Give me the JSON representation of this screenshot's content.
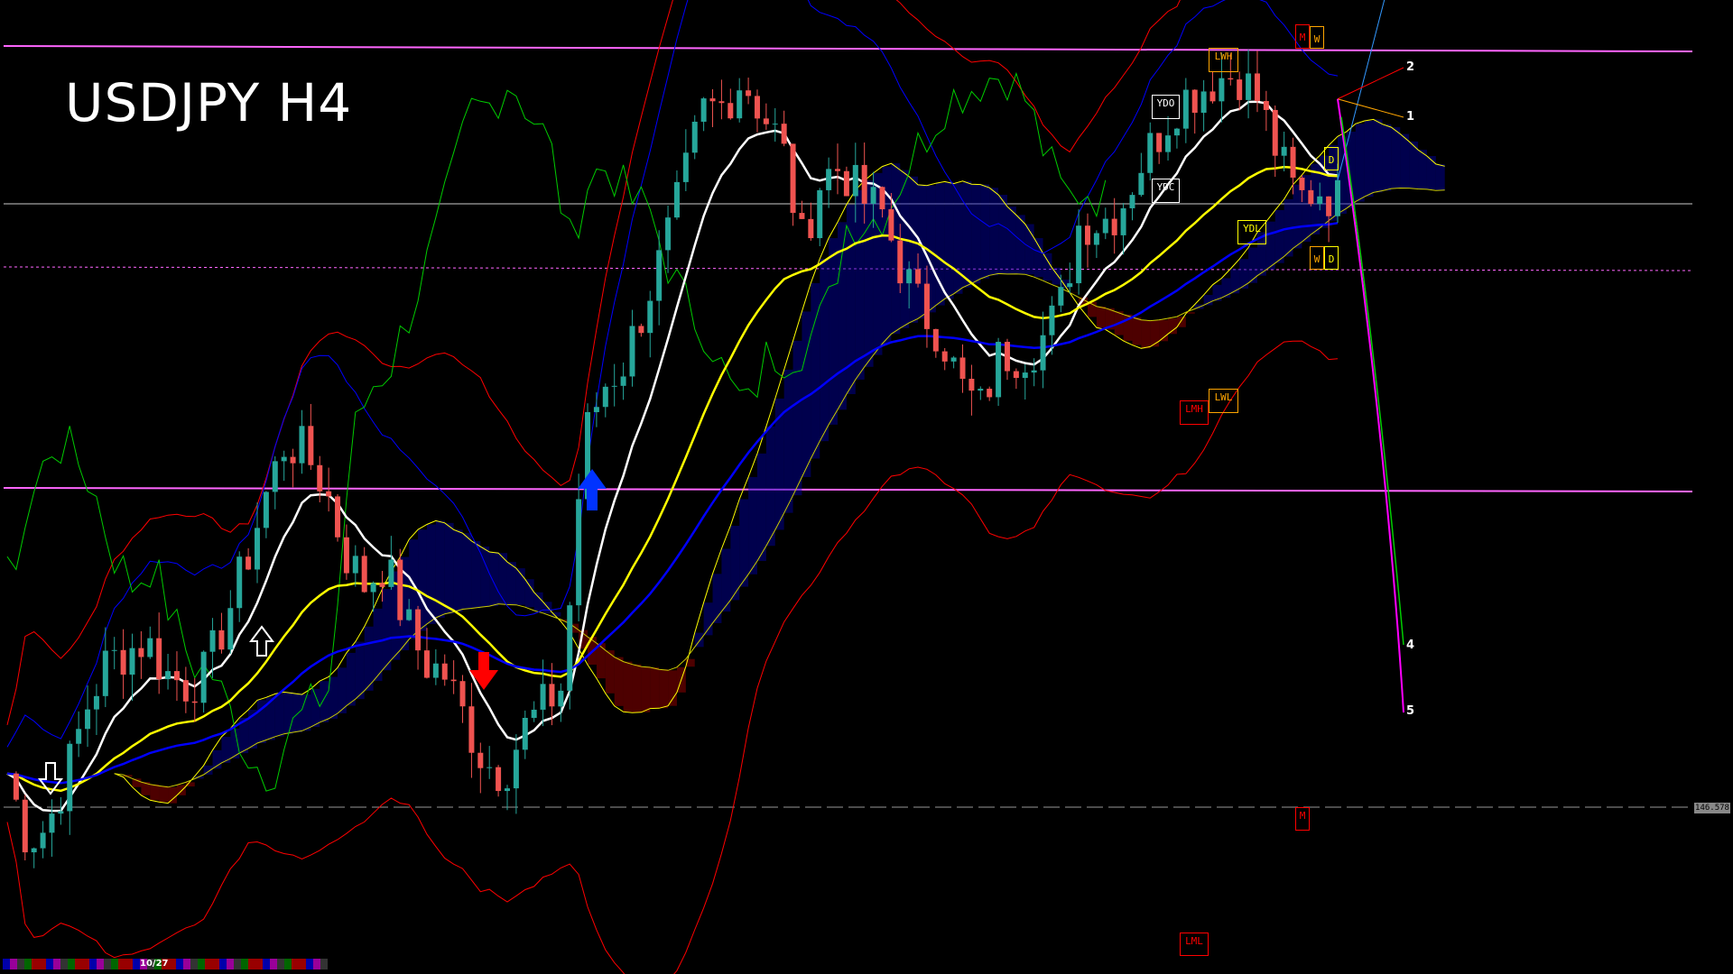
{
  "title": "USDJPY H4",
  "current_price_label": "146.578",
  "date_tag": "10/27",
  "colors": {
    "background": "#000000",
    "bull_candle": "#26a69a",
    "bear_candle": "#ef5350",
    "ma_fast": "#ffffff",
    "ma_mid": "#ffff00",
    "ma_slow": "#0000ff",
    "bands": "#ff0000",
    "chikou": "#00cc00",
    "level_line": "#ff66ff",
    "cloud_bull": "#0000aa",
    "cloud_bear": "#aa0000"
  },
  "level_labels": [
    {
      "text": "M",
      "color": "#ff0000"
    },
    {
      "text": "W",
      "color": "#ffa500"
    },
    {
      "text": "LWH",
      "color": "#ffa500"
    },
    {
      "text": "YDO",
      "color": "#ffffff"
    },
    {
      "text": "YDC",
      "color": "#ffffff"
    },
    {
      "text": "D",
      "color": "#ffff00"
    },
    {
      "text": "YDL",
      "color": "#ffff00"
    },
    {
      "text": "W",
      "color": "#ffa500"
    },
    {
      "text": "D",
      "color": "#ffff00"
    },
    {
      "text": "LWL",
      "color": "#ffa500"
    },
    {
      "text": "LMH",
      "color": "#ff0000"
    },
    {
      "text": "M",
      "color": "#ff0000"
    },
    {
      "text": "LML",
      "color": "#ff0000"
    }
  ],
  "wave_labels": [
    "2",
    "1",
    "4",
    "5"
  ],
  "chart_data": {
    "type": "candlestick",
    "title": "USDJPY H4",
    "reference_price": 146.578,
    "grid": false,
    "legend": "none",
    "closes": [
      146.81,
      146.36,
      146.44,
      146.81,
      147.26,
      147.56,
      147.64,
      147.71,
      147.49,
      147.41,
      147.49,
      147.86,
      148.24,
      148.69,
      149.06,
      148.99,
      148.76,
      148.31,
      148.09,
      148.24,
      147.86,
      147.56,
      147.49,
      147.19,
      146.89,
      146.81,
      147.11,
      147.26,
      147.41,
      149.06,
      149.44,
      149.59,
      149.96,
      150.34,
      150.79,
      151.31,
      151.35,
      151.54,
      151.31,
      151.09,
      150.41,
      150.86,
      150.94,
      150.71,
      150.64,
      150.26,
      149.96,
      149.81,
      149.44,
      149.29,
      149.66,
      149.66,
      149.74,
      149.96,
      150.56,
      150.56,
      150.64,
      150.94,
      151.16,
      151.39,
      151.46,
      151.54,
      151.57,
      151.39,
      151.01,
      150.71,
      150.79,
      150.71
    ],
    "horizontal_levels": [
      151.7,
      150.3,
      149.6,
      148.1,
      146.578
    ]
  }
}
